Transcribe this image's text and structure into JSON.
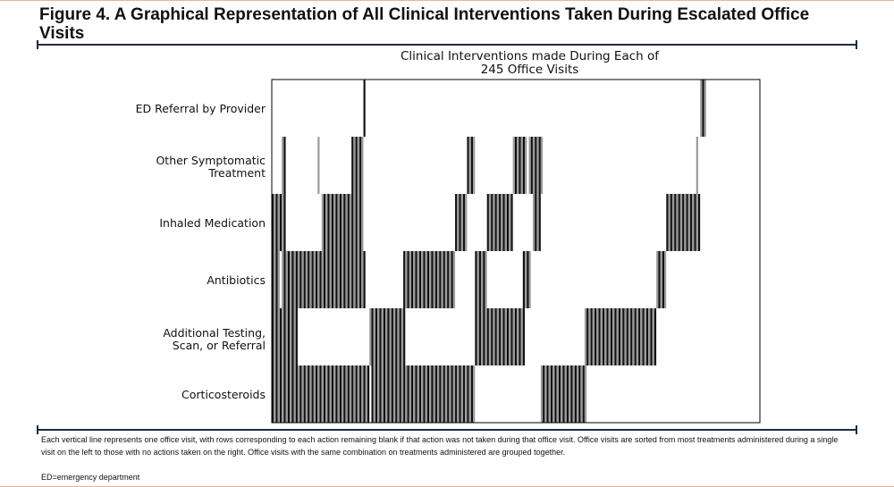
{
  "figure": {
    "title": "Figure 4. A Graphical Representation of All Clinical Interventions Taken During Escalated Office Visits",
    "caption": "Each vertical line represents one office visit, with rows corresponding to each action remaining blank if that action was not taken during that office visit. Office visits are sorted from most treatments administered during a single visit on the left to those with no actions taken on the right. Office visits with the same combination on treatments administered are grouped together.",
    "footnote": "ED=emergency department"
  },
  "chart_data": {
    "type": "heatmap",
    "title": "Clinical Interventions made During Each of\n245 Office Visits",
    "n_visits": 245,
    "rows": [
      "ED Referral by Provider",
      "Other Symptomatic\nTreatment",
      "Inhaled Medication",
      "Antibiotics",
      "Additional Testing,\nScan, or Referral",
      "Corticosteroids"
    ],
    "row_segments": [
      [
        [
          46,
          46
        ],
        [
          215,
          217
        ]
      ],
      [
        [
          5,
          6
        ],
        [
          23,
          23
        ],
        [
          40,
          45
        ],
        [
          98,
          101
        ],
        [
          121,
          127
        ],
        [
          129,
          135
        ],
        [
          213,
          213
        ]
      ],
      [
        [
          0,
          6
        ],
        [
          25,
          45
        ],
        [
          92,
          97
        ],
        [
          108,
          120
        ],
        [
          131,
          134
        ],
        [
          198,
          214
        ]
      ],
      [
        [
          0,
          3
        ],
        [
          5,
          25
        ],
        [
          25,
          46
        ],
        [
          66,
          91
        ],
        [
          102,
          107
        ],
        [
          126,
          129
        ],
        [
          193,
          197
        ]
      ],
      [
        [
          0,
          12
        ],
        [
          49,
          66
        ],
        [
          102,
          126
        ],
        [
          157,
          192
        ]
      ],
      [
        [
          0,
          48
        ],
        [
          50,
          101
        ],
        [
          135,
          157
        ]
      ]
    ],
    "colors": {
      "line_dark": "#111111",
      "line_light": "#9a9a9a",
      "frame": "#000000"
    },
    "grid": false,
    "legend": "none"
  }
}
